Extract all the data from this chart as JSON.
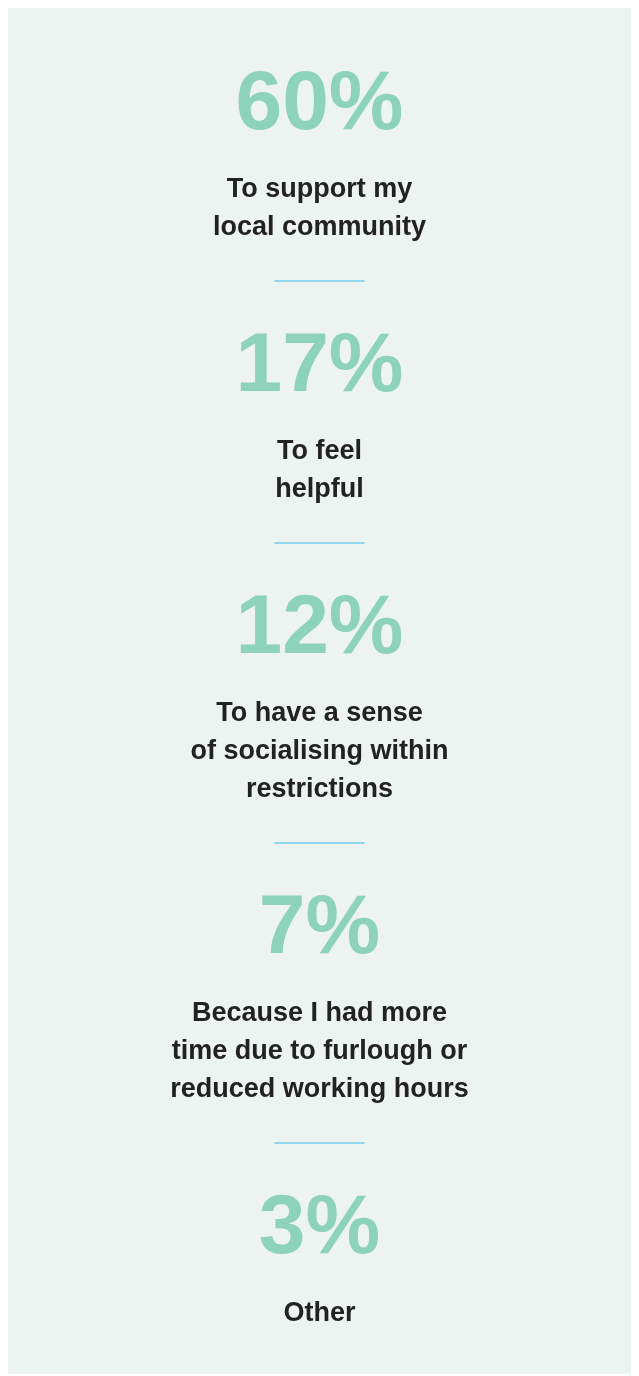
{
  "chart_data": {
    "type": "other",
    "categories": [
      "To support my\nlocal community",
      "To feel\nhelpful",
      "To have a sense\nof socialising within\nrestrictions",
      "Because I had more\ntime due to furlough or\nreduced working hours",
      "Other"
    ],
    "values": [
      60,
      17,
      12,
      7,
      3
    ],
    "value_labels": [
      "60%",
      "17%",
      "12%",
      "7%",
      "3%"
    ],
    "color": "#8dd3bc"
  }
}
